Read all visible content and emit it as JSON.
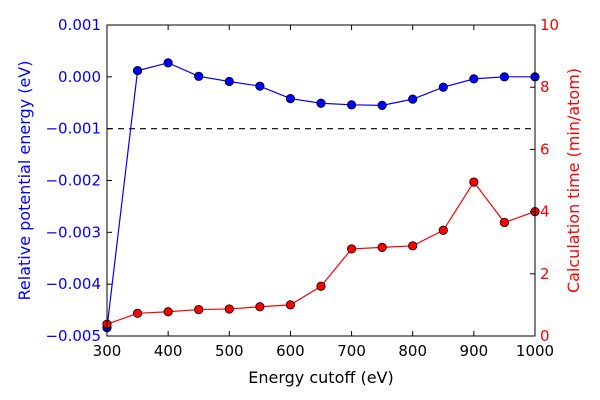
{
  "chart_data": {
    "type": "line",
    "xlabel": "Energy cutoff (eV)",
    "ylabel_left": "Relative potential energy (eV)",
    "ylabel_right": "Calculation time (min/atom)",
    "xlim": [
      300,
      1000
    ],
    "ylim_left": [
      -0.005,
      0.001
    ],
    "ylim_right": [
      0,
      10
    ],
    "x_ticks": [
      300,
      400,
      500,
      600,
      700,
      800,
      900,
      1000
    ],
    "left_ticks": [
      {
        "value": 0.001,
        "label": "0.001"
      },
      {
        "value": 0.0,
        "label": "0.000"
      },
      {
        "value": -0.001,
        "label": "−0.001"
      },
      {
        "value": -0.002,
        "label": "−0.002"
      },
      {
        "value": -0.003,
        "label": "−0.003"
      },
      {
        "value": -0.004,
        "label": "−0.004"
      },
      {
        "value": -0.005,
        "label": "−0.005"
      }
    ],
    "right_ticks": [
      0,
      2,
      4,
      6,
      8,
      10
    ],
    "reference_line": {
      "axis": "left",
      "y": -0.001,
      "style": "dashed",
      "color": "#000000"
    },
    "x": [
      300,
      350,
      400,
      450,
      500,
      550,
      600,
      650,
      700,
      750,
      800,
      850,
      900,
      950,
      1000
    ],
    "series": [
      {
        "name": "Relative potential energy",
        "axis": "left",
        "color": "#0000ff",
        "values": [
          -0.00484,
          0.00012,
          0.00027,
          1e-05,
          -9e-05,
          -0.00018,
          -0.00042,
          -0.00051,
          -0.00054,
          -0.00055,
          -0.00043,
          -0.0002,
          -4e-05,
          0.0,
          0.0
        ]
      },
      {
        "name": "Calculation time",
        "axis": "right",
        "color": "#ff0000",
        "values": [
          0.38,
          0.73,
          0.78,
          0.85,
          0.87,
          0.94,
          1.0,
          1.6,
          2.8,
          2.85,
          2.9,
          3.4,
          4.95,
          3.65,
          4.0
        ]
      }
    ]
  }
}
